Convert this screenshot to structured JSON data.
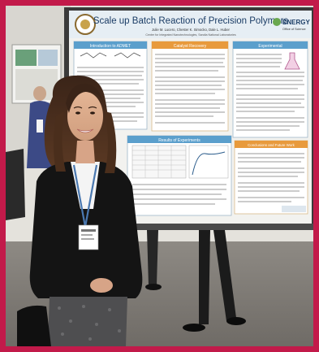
{
  "poster": {
    "title": "Scale up Batch Reaction of Precision Polymers",
    "authors": "Julie M. Lucero, Chester K. Simocko, Dale L. Huber",
    "affiliation": "Center for Integrated Nanotechnologies, Sandia National Laboratories",
    "sections": {
      "intro": "Introduction to ADMET",
      "center": "Catalyst Recovery",
      "experimental": "Experimental",
      "results": "Results of Experiments",
      "conclusions": "Conclusions and Future Work"
    },
    "logo_right": "ENERGY",
    "logo_right_sub": "Office of Science"
  },
  "colors": {
    "frame": "#c21a4a",
    "poster_header": "#e6eef4",
    "section_header": "#5b9fcc",
    "accent_orange": "#e89a3c"
  }
}
